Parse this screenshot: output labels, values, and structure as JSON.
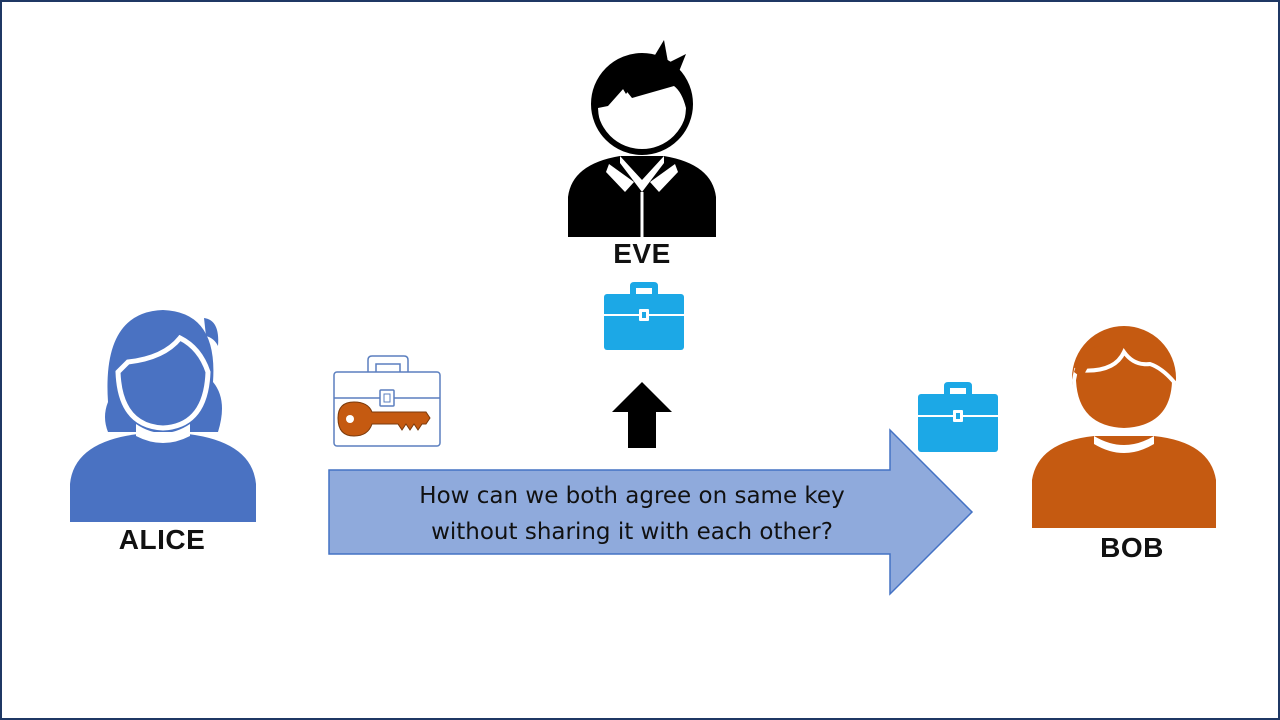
{
  "people": {
    "eve": {
      "name": "EVE",
      "color": "#000000"
    },
    "alice": {
      "name": "ALICE",
      "color": "#4a72c2"
    },
    "bob": {
      "name": "BOB",
      "color": "#c55a11"
    }
  },
  "message": {
    "line1": "How can we both agree on same key",
    "line2": "without sharing it with each other?",
    "arrow_fill": "#8faadc",
    "arrow_stroke": "#4472c4"
  },
  "icons": {
    "briefcase_color": "#1ca8e6",
    "key_color": "#c55a11",
    "up_arrow_color": "#000000"
  },
  "frame_color": "#1f3864"
}
